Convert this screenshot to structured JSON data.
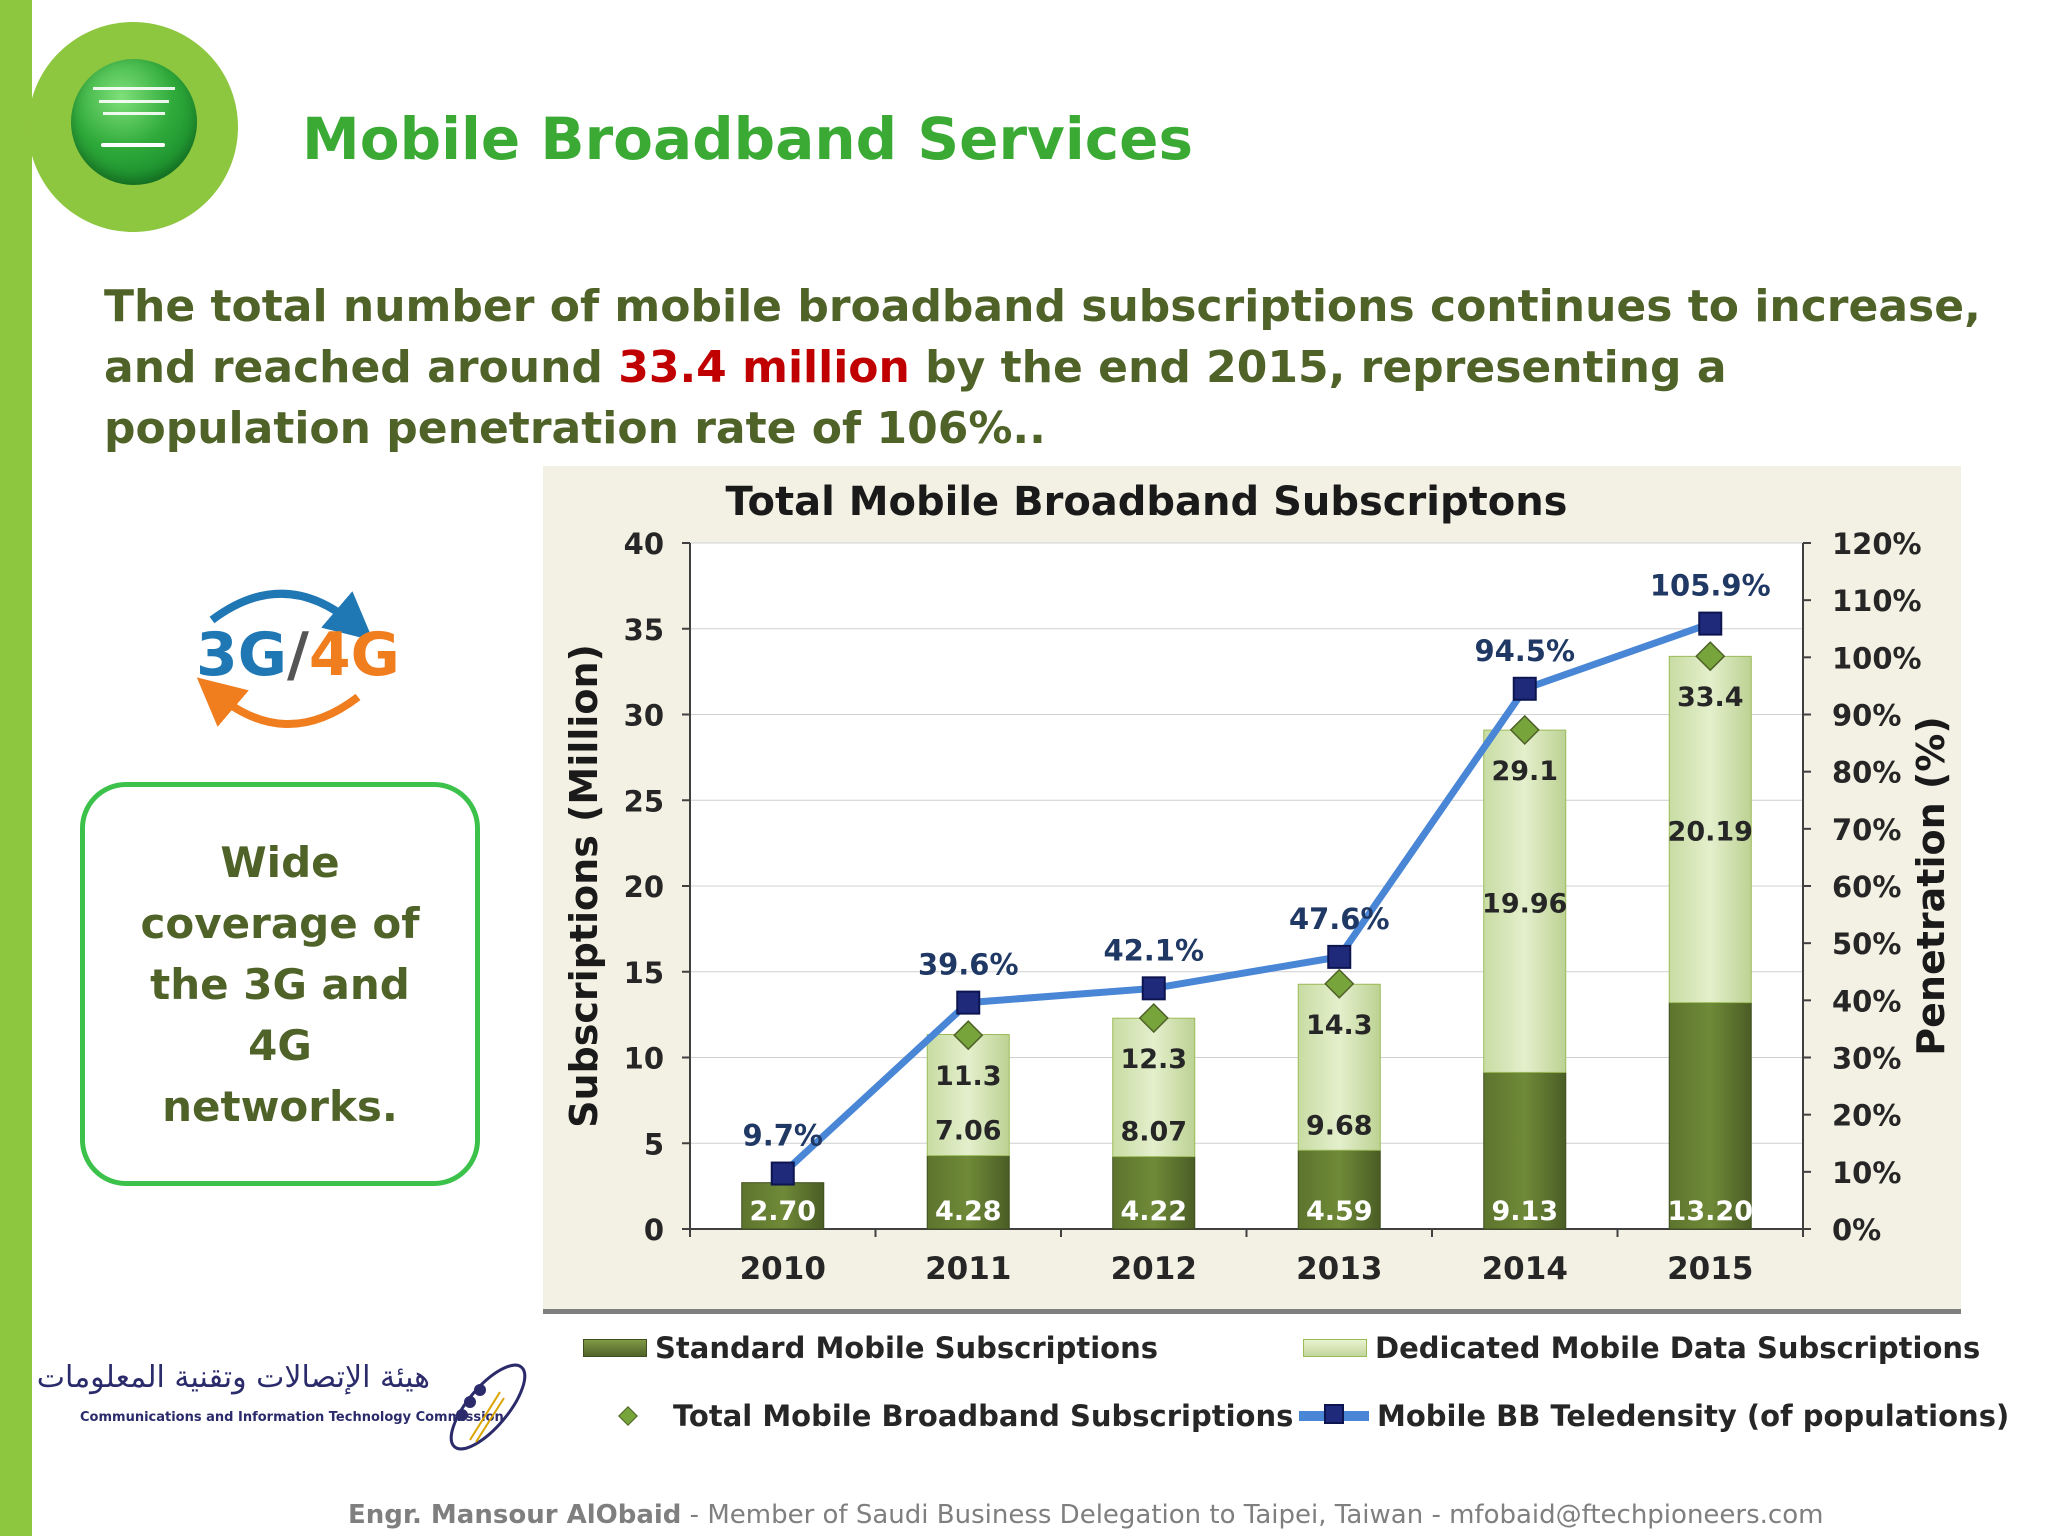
{
  "slide": {
    "title": "Mobile Broadband Services",
    "intro_part1": "The total number of mobile broadband subscriptions continues to increase, and reached around ",
    "intro_highlight": "33.4 million",
    "intro_part2": " by the end 2015, representing a population penetration rate of 106%.."
  },
  "badge": {
    "g3": "3G",
    "slash": "/",
    "g4": "4G"
  },
  "coverage_box": {
    "text": "Wide coverage of the 3G and 4G networks."
  },
  "chart_data": {
    "type": "bar",
    "title": "Total Mobile Broadband Subscriptons",
    "ylabel": "Subscriptions (Million)",
    "y2label": "Penetration (%)",
    "ylim": [
      0,
      40
    ],
    "yticks": [
      0,
      5,
      10,
      15,
      20,
      25,
      30,
      35,
      40
    ],
    "y2lim": [
      0,
      120
    ],
    "y2ticks": [
      "0%",
      "10%",
      "20%",
      "30%",
      "40%",
      "50%",
      "60%",
      "70%",
      "80%",
      "90%",
      "100%",
      "110%",
      "120%"
    ],
    "grid": true,
    "categories": [
      "2010",
      "2011",
      "2012",
      "2013",
      "2014",
      "2015"
    ],
    "series": [
      {
        "name": "Standard Mobile Subscriptions",
        "kind": "stacked-bar",
        "color": "#4f6228",
        "values": [
          2.7,
          4.28,
          4.22,
          4.59,
          9.13,
          13.2
        ],
        "labels": [
          "2.70",
          "4.28",
          "4.22",
          "4.59",
          "9.13",
          "13.20"
        ]
      },
      {
        "name": "Dedicated Mobile Data Subscriptions",
        "kind": "stacked-bar",
        "color": "#c2d69b",
        "values": [
          0,
          7.06,
          8.07,
          9.68,
          19.96,
          20.19
        ],
        "labels": [
          "",
          "7.06",
          "8.07",
          "9.68",
          "19.96",
          "20.19"
        ]
      },
      {
        "name": "Total Mobile Broadband Subscriptions",
        "kind": "marker",
        "color": "#77a53c",
        "values": [
          2.7,
          11.3,
          12.3,
          14.3,
          29.1,
          33.4
        ],
        "labels": [
          "",
          "11.3",
          "12.3",
          "14.3",
          "29.1",
          "33.4"
        ]
      },
      {
        "name": "Mobile BB Telednsity (of populations)",
        "kind": "line-right-axis",
        "color": "#4a86d6",
        "values": [
          9.7,
          39.6,
          42.1,
          47.6,
          94.5,
          105.9
        ],
        "labels": [
          "9.7%",
          "39.6%",
          "42.1%",
          "47.6%",
          "94.5%",
          "105.9%"
        ]
      }
    ]
  },
  "legend": {
    "standard": "Standard Mobile Subscriptions",
    "dedicated": "Dedicated Mobile Data Subscriptions",
    "total": "Total Mobile Broadband Subscriptions",
    "teledensity": "Mobile BB Teledensity (of populations)"
  },
  "org": {
    "arabic": "هيئة الإتصالات وتقنية المعلومات",
    "english": "Communications and Information Technology Commission"
  },
  "footer": {
    "name": "Engr. Mansour AlObaid",
    "text": " - Member of Saudi Business Delegation to Taipei, Taiwan -   mfobaid@ftechpioneers.com"
  },
  "colors": {
    "accent_green": "#3aaa35",
    "body_text": "#4f6228",
    "highlight_red": "#c00000",
    "left_bar": "#8dc63f"
  },
  "icons": [
    "saudi-flag-icon",
    "3g-4g-arrows-icon",
    "citc-logo-icon"
  ]
}
